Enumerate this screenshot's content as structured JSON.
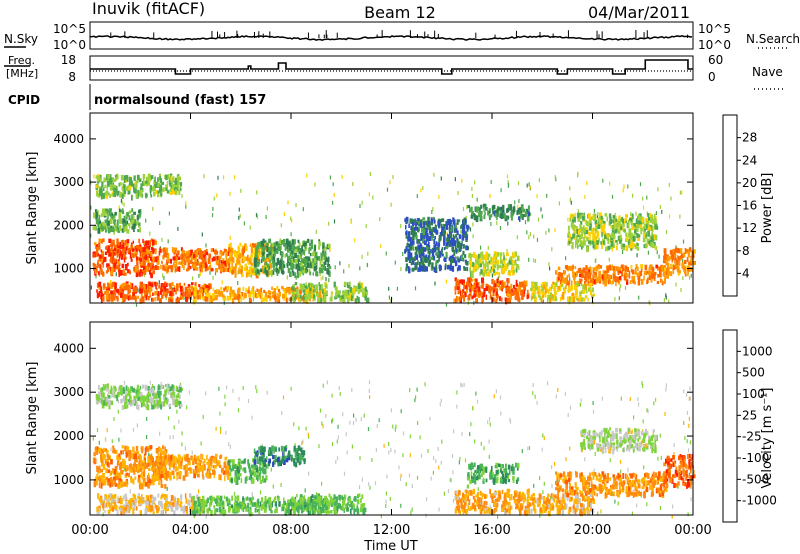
{
  "header": {
    "station": "Inuvik (fitACF)",
    "beam": "Beam 12",
    "date": "04/Mar/2011"
  },
  "top_panel": {
    "left_label": "N.Sky",
    "right_label": "N.Search",
    "left_ticks": [
      "10^5",
      "10^0"
    ],
    "right_ticks": [
      "10^5",
      "10^0"
    ]
  },
  "freq_panel": {
    "left_label_1": "Freq.",
    "left_label_2": "[MHz]",
    "right_label": "Nave",
    "left_ticks": [
      "18",
      "8"
    ],
    "right_ticks": [
      "60",
      "0"
    ]
  },
  "cpid_panel": {
    "label": "CPID",
    "text": "normalsound (fast) 157"
  },
  "x_axis": {
    "ticks": [
      "00:00",
      "04:00",
      "08:00",
      "12:00",
      "16:00",
      "20:00",
      "00:00"
    ],
    "label": "Time UT"
  },
  "chart_data": [
    {
      "type": "heatmap",
      "quantity": "power",
      "ylabel": "Slant Range [km]",
      "yticks": [
        1000,
        2000,
        3000,
        4000
      ],
      "ylim": [
        200,
        4600
      ],
      "xlim_hours": [
        0,
        24
      ],
      "colorbar_label": "Power [dB]",
      "colorbar_ticks": [
        "28",
        "24",
        "20",
        "16",
        "12",
        "8",
        "4"
      ],
      "colorbar_colors": [
        "#0a0aff",
        "#2d4fc2",
        "#2e7d4f",
        "#4fa84e",
        "#9cd13a",
        "#ffd000",
        "#ff9a00",
        "#ff6a00",
        "#ff1a00"
      ],
      "blobs": [
        {
          "t": [
            0.1,
            2.6
          ],
          "r": [
            900,
            1700
          ],
          "v": 0.92
        },
        {
          "t": [
            2.0,
            5.6
          ],
          "r": [
            1000,
            1500
          ],
          "v": 0.85
        },
        {
          "t": [
            0.2,
            4.8
          ],
          "r": [
            300,
            700
          ],
          "v": 0.9
        },
        {
          "t": [
            4.0,
            9.3
          ],
          "r": [
            300,
            600
          ],
          "v": 0.75
        },
        {
          "t": [
            5.5,
            7.2
          ],
          "r": [
            900,
            1600
          ],
          "v": 0.7
        },
        {
          "t": [
            0.2,
            3.6
          ],
          "r": [
            2700,
            3200
          ],
          "v": 0.45
        },
        {
          "t": [
            0.1,
            2.0
          ],
          "r": [
            1900,
            2400
          ],
          "v": 0.4
        },
        {
          "t": [
            6.5,
            9.5
          ],
          "r": [
            900,
            1700
          ],
          "v": 0.35
        },
        {
          "t": [
            8.0,
            11.0
          ],
          "r": [
            300,
            700
          ],
          "v": 0.45
        },
        {
          "t": [
            14.5,
            17.4
          ],
          "r": [
            300,
            800
          ],
          "v": 0.9
        },
        {
          "t": [
            15.0,
            17.0
          ],
          "r": [
            900,
            1400
          ],
          "v": 0.55
        },
        {
          "t": [
            18.5,
            23.0
          ],
          "r": [
            700,
            1100
          ],
          "v": 0.82
        },
        {
          "t": [
            19.0,
            22.5
          ],
          "r": [
            1500,
            2300
          ],
          "v": 0.5
        },
        {
          "t": [
            22.8,
            24.0
          ],
          "r": [
            900,
            1500
          ],
          "v": 0.8
        },
        {
          "t": [
            12.5,
            15.0
          ],
          "r": [
            1000,
            2200
          ],
          "v": 0.2
        },
        {
          "t": [
            15.0,
            17.5
          ],
          "r": [
            2200,
            2500
          ],
          "v": 0.3
        },
        {
          "t": [
            17.5,
            20.0
          ],
          "r": [
            300,
            700
          ],
          "v": 0.6
        }
      ]
    },
    {
      "type": "heatmap",
      "quantity": "velocity",
      "ylabel": "Slant Range [km]",
      "yticks": [
        1000,
        2000,
        3000,
        4000
      ],
      "ylim": [
        200,
        4600
      ],
      "xlim_hours": [
        0,
        24
      ],
      "colorbar_label": "Velocity [m s⁻¹]",
      "colorbar_ticks": [
        "1000",
        "500",
        "100",
        "25",
        "-25",
        "-100",
        "-500",
        "-1000"
      ],
      "colorbar_colors": [
        "#2a45b8",
        "#2e8a5c",
        "#48b25a",
        "#7fd43a",
        "#c8c8c8",
        "#ffb400",
        "#ff8a10",
        "#ff5a00",
        "#ff1a00"
      ],
      "blobs": [
        {
          "t": [
            0.1,
            3.0
          ],
          "r": [
            900,
            1800
          ],
          "v": 0.72
        },
        {
          "t": [
            2.5,
            5.5
          ],
          "r": [
            1100,
            1600
          ],
          "v": 0.7
        },
        {
          "t": [
            5.5,
            7.0
          ],
          "r": [
            1000,
            1500
          ],
          "v": 0.3
        },
        {
          "t": [
            6.5,
            8.5
          ],
          "r": [
            1400,
            1800
          ],
          "v": 0.15
        },
        {
          "t": [
            0.2,
            4.5
          ],
          "r": [
            300,
            700
          ],
          "v": 0.6
        },
        {
          "t": [
            4.0,
            9.5
          ],
          "r": [
            300,
            650
          ],
          "v": 0.3
        },
        {
          "t": [
            0.2,
            3.6
          ],
          "r": [
            2700,
            3200
          ],
          "v": 0.38
        },
        {
          "t": [
            14.5,
            17.5
          ],
          "r": [
            300,
            800
          ],
          "v": 0.68
        },
        {
          "t": [
            15.0,
            17.0
          ],
          "r": [
            1000,
            1400
          ],
          "v": 0.25
        },
        {
          "t": [
            18.5,
            23.0
          ],
          "r": [
            700,
            1200
          ],
          "v": 0.72
        },
        {
          "t": [
            19.5,
            22.5
          ],
          "r": [
            1700,
            2200
          ],
          "v": 0.45
        },
        {
          "t": [
            22.8,
            24.0
          ],
          "r": [
            900,
            1600
          ],
          "v": 0.85
        },
        {
          "t": [
            8.0,
            11.0
          ],
          "r": [
            300,
            700
          ],
          "v": 0.3
        },
        {
          "t": [
            17.5,
            20.0
          ],
          "r": [
            300,
            700
          ],
          "v": 0.65
        }
      ]
    }
  ]
}
